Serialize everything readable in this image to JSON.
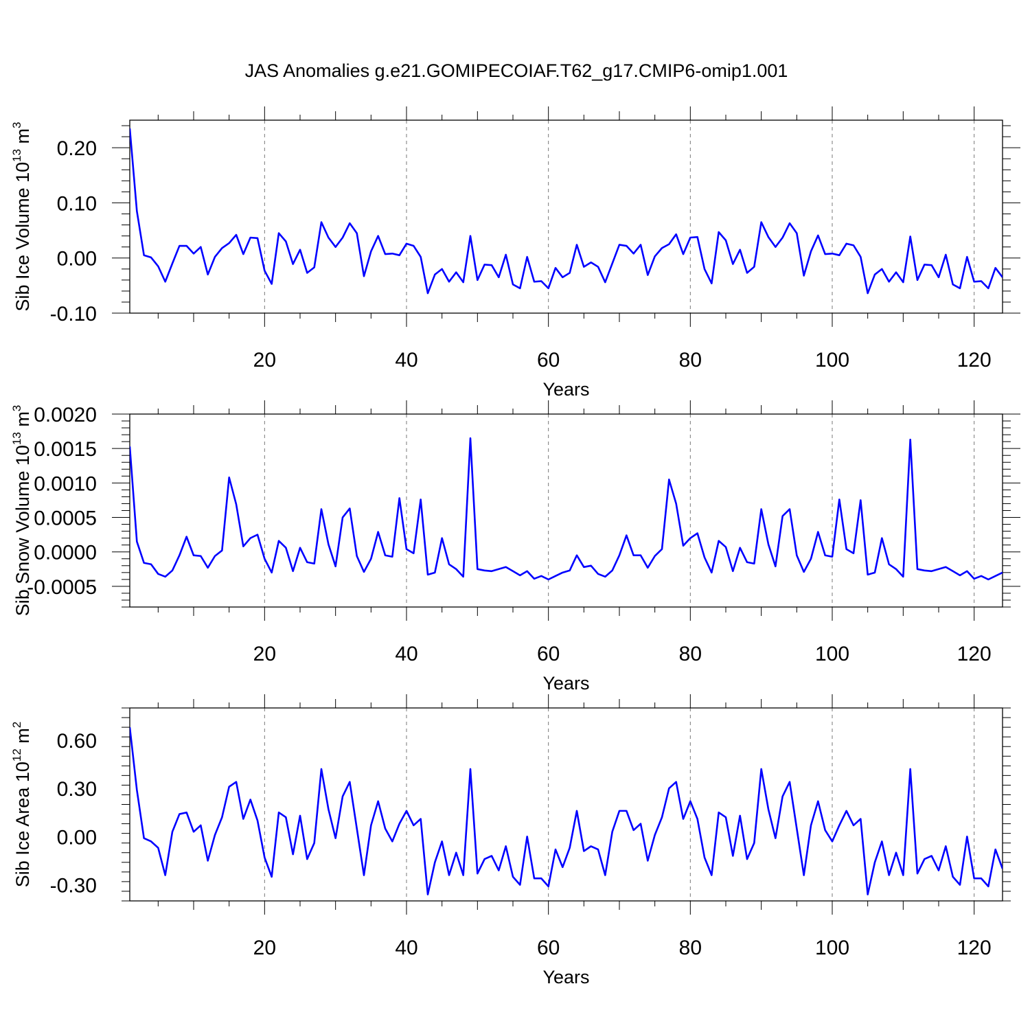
{
  "title": "JAS Anomalies g.e21.GOMIPECOIAF.T62_g17.CMIP6-omip1.001",
  "line_color": "#0000ff",
  "chart_data": [
    {
      "type": "line",
      "title": "",
      "xlabel": "Years",
      "ylabel_main": "Sib Ice Volume 10",
      "ylabel_sup1": "13",
      "ylabel_mid": " m",
      "ylabel_sup2": "3",
      "xlim": [
        1,
        124
      ],
      "ylim": [
        -0.1,
        0.25
      ],
      "xticks": [
        20,
        40,
        60,
        80,
        100,
        120
      ],
      "yticks": [
        -0.1,
        0.0,
        0.1,
        0.2
      ],
      "ytick_labels": [
        "-0.10",
        "0.00",
        "0.10",
        "0.20"
      ],
      "grid": "vertical dashed at x ticks",
      "series": [
        {
          "values": [
            0.235,
            0.085,
            0.005,
            0.001,
            -0.015,
            -0.043,
            -0.01,
            0.022,
            0.022,
            0.008,
            0.02,
            -0.03,
            0.002,
            0.018,
            0.027,
            0.042,
            0.007,
            0.037,
            0.036,
            -0.023,
            -0.047,
            0.045,
            0.03,
            -0.011,
            0.015,
            -0.027,
            -0.017,
            0.065,
            0.037,
            0.02,
            0.037,
            0.063,
            0.045,
            -0.033,
            0.012,
            0.04,
            0.007,
            0.008,
            0.005,
            0.026,
            0.022,
            0.002,
            -0.064,
            -0.03,
            -0.02,
            -0.043,
            -0.026,
            -0.044,
            0.04,
            -0.04,
            -0.012,
            -0.013,
            -0.035,
            0.006,
            -0.048,
            -0.055,
            0.002,
            -0.043,
            -0.042,
            -0.055,
            -0.018,
            -0.035,
            -0.027,
            0.024,
            -0.016,
            -0.008,
            -0.016,
            -0.044,
            -0.01,
            0.024,
            0.022,
            0.008,
            0.024,
            -0.031,
            0.003,
            0.018,
            0.025,
            0.043,
            0.007,
            0.037,
            0.038,
            -0.02,
            -0.046,
            0.047,
            0.032,
            -0.011,
            0.015,
            -0.027,
            -0.016,
            0.065,
            0.038,
            0.02,
            0.037,
            0.063,
            0.045,
            -0.032,
            0.012,
            0.041,
            0.007,
            0.008,
            0.005,
            0.026,
            0.023,
            0.002,
            -0.064,
            -0.03,
            -0.02,
            -0.043,
            -0.026,
            -0.044,
            0.039,
            -0.04,
            -0.012,
            -0.013,
            -0.035,
            0.006,
            -0.048,
            -0.055,
            0.002,
            -0.043,
            -0.042,
            -0.055,
            -0.018,
            -0.035
          ]
        }
      ]
    },
    {
      "type": "line",
      "title": "",
      "xlabel": "Years",
      "ylabel_main": "Sib Snow Volume 10",
      "ylabel_sup1": "13",
      "ylabel_mid": " m",
      "ylabel_sup2": "3",
      "xlim": [
        1,
        124
      ],
      "ylim": [
        -0.0008,
        0.002
      ],
      "xticks": [
        20,
        40,
        60,
        80,
        100,
        120
      ],
      "yticks": [
        -0.0005,
        0.0,
        0.0005,
        0.001,
        0.0015,
        0.002
      ],
      "ytick_labels": [
        "-0.0005",
        "0.0000",
        "0.0005",
        "0.0010",
        "0.0015",
        "0.0020"
      ],
      "grid": "vertical dashed at x ticks",
      "series": [
        {
          "values": [
            0.00153,
            0.00015,
            -0.00016,
            -0.00018,
            -0.00032,
            -0.00036,
            -0.00027,
            -5e-05,
            0.00022,
            -5e-05,
            -6e-05,
            -0.00023,
            -6e-05,
            2e-05,
            0.00108,
            0.00069,
            8e-05,
            0.0002,
            0.00025,
            -0.0001,
            -0.0003,
            0.00016,
            6e-05,
            -0.00028,
            6e-05,
            -0.00015,
            -0.00017,
            0.00062,
            0.00011,
            -0.00021,
            0.0005,
            0.00063,
            -6e-05,
            -0.00029,
            -0.0001,
            0.00029,
            -5e-05,
            -7e-05,
            0.00078,
            4e-05,
            -2e-05,
            0.00076,
            -0.00033,
            -0.0003,
            0.0002,
            -0.00018,
            -0.00025,
            -0.00036,
            0.00165,
            -0.00025,
            -0.00027,
            -0.00028,
            -0.00025,
            -0.00022,
            -0.00028,
            -0.00034,
            -0.00028,
            -0.00039,
            -0.00035,
            -0.0004,
            -0.00035,
            -0.0003,
            -0.00027,
            -5e-05,
            -0.00022,
            -0.0002,
            -0.00032,
            -0.00036,
            -0.00027,
            -5e-05,
            0.00024,
            -5e-05,
            -5e-05,
            -0.00023,
            -6e-05,
            4e-05,
            0.00105,
            0.0007,
            9e-05,
            0.0002,
            0.00027,
            -8e-05,
            -0.0003,
            0.00016,
            7e-05,
            -0.00028,
            6e-05,
            -0.00015,
            -0.00017,
            0.00062,
            0.00011,
            -0.00021,
            0.00052,
            0.00062,
            -5e-05,
            -0.00029,
            -0.0001,
            0.00029,
            -5e-05,
            -7e-05,
            0.00076,
            4e-05,
            -2e-05,
            0.00075,
            -0.00033,
            -0.0003,
            0.0002,
            -0.00018,
            -0.00025,
            -0.00036,
            0.00163,
            -0.00025,
            -0.00027,
            -0.00028,
            -0.00025,
            -0.00022,
            -0.00028,
            -0.00034,
            -0.00028,
            -0.00039,
            -0.00035,
            -0.0004,
            -0.00035,
            -0.0003
          ]
        }
      ]
    },
    {
      "type": "line",
      "title": "",
      "xlabel": "Years",
      "ylabel_main": "Sib Ice Area 10",
      "ylabel_sup1": "12",
      "ylabel_mid": " m",
      "ylabel_sup2": "2",
      "xlim": [
        1,
        124
      ],
      "ylim": [
        -0.4,
        0.8
      ],
      "xticks": [
        20,
        40,
        60,
        80,
        100,
        120
      ],
      "yticks": [
        -0.3,
        0.0,
        0.3,
        0.6
      ],
      "ytick_labels": [
        "-0.30",
        "0.00",
        "0.30",
        "0.60"
      ],
      "grid": "vertical dashed at x ticks",
      "series": [
        {
          "values": [
            0.68,
            0.29,
            -0.01,
            -0.03,
            -0.07,
            -0.24,
            0.03,
            0.14,
            0.15,
            0.03,
            0.07,
            -0.15,
            0.01,
            0.12,
            0.31,
            0.34,
            0.11,
            0.23,
            0.1,
            -0.13,
            -0.25,
            0.15,
            0.12,
            -0.11,
            0.13,
            -0.14,
            -0.04,
            0.42,
            0.17,
            -0.01,
            0.25,
            0.34,
            0.05,
            -0.24,
            0.07,
            0.22,
            0.05,
            -0.03,
            0.08,
            0.16,
            0.07,
            0.11,
            -0.36,
            -0.16,
            -0.03,
            -0.24,
            -0.1,
            -0.24,
            0.42,
            -0.23,
            -0.14,
            -0.12,
            -0.21,
            -0.06,
            -0.25,
            -0.3,
            -0.0,
            -0.26,
            -0.26,
            -0.31,
            -0.08,
            -0.19,
            -0.07,
            0.16,
            -0.09,
            -0.06,
            -0.08,
            -0.24,
            0.03,
            0.16,
            0.16,
            0.04,
            0.08,
            -0.15,
            0.01,
            0.12,
            0.3,
            0.34,
            0.11,
            0.22,
            0.11,
            -0.13,
            -0.24,
            0.15,
            0.12,
            -0.12,
            0.13,
            -0.14,
            -0.04,
            0.42,
            0.17,
            -0.01,
            0.25,
            0.34,
            0.05,
            -0.24,
            0.07,
            0.22,
            0.04,
            -0.03,
            0.07,
            0.16,
            0.07,
            0.11,
            -0.36,
            -0.16,
            -0.03,
            -0.24,
            -0.1,
            -0.24,
            0.42,
            -0.23,
            -0.14,
            -0.12,
            -0.21,
            -0.06,
            -0.25,
            -0.3,
            -0.0,
            -0.26,
            -0.26,
            -0.31,
            -0.08,
            -0.2
          ]
        }
      ]
    }
  ]
}
